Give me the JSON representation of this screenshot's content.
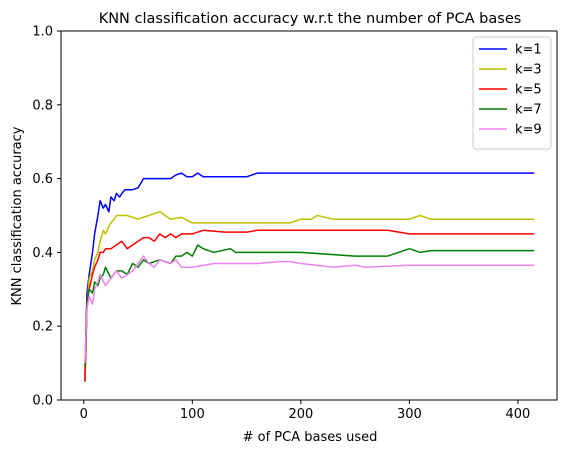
{
  "chart_data": {
    "type": "line",
    "title": "KNN classification accuracy w.r.t the number of PCA bases",
    "xlabel": "# of PCA bases used",
    "ylabel": "KNN classification accuracy",
    "xlim": [
      -21,
      436
    ],
    "ylim": [
      0.0,
      1.0
    ],
    "xticks": [
      0,
      100,
      200,
      300,
      400
    ],
    "yticks": [
      0.0,
      0.2,
      0.4,
      0.6,
      0.8,
      1.0
    ],
    "xtick_labels": [
      "0",
      "100",
      "200",
      "300",
      "400"
    ],
    "ytick_labels": [
      "0.0",
      "0.2",
      "0.4",
      "0.6",
      "0.8",
      "1.0"
    ],
    "grid": false,
    "legend_position": "top-right",
    "series": [
      {
        "name": "k=1",
        "color": "#0000ff",
        "x": [
          1,
          2,
          3,
          5,
          8,
          10,
          13,
          15,
          18,
          20,
          23,
          25,
          28,
          30,
          33,
          35,
          38,
          40,
          45,
          50,
          55,
          60,
          70,
          80,
          85,
          90,
          95,
          100,
          105,
          110,
          120,
          130,
          140,
          150,
          155,
          160,
          200,
          250,
          300,
          350,
          415
        ],
        "y": [
          0.05,
          0.2,
          0.29,
          0.34,
          0.4,
          0.45,
          0.5,
          0.54,
          0.52,
          0.53,
          0.51,
          0.55,
          0.54,
          0.56,
          0.55,
          0.56,
          0.57,
          0.57,
          0.57,
          0.575,
          0.6,
          0.6,
          0.6,
          0.6,
          0.61,
          0.615,
          0.605,
          0.605,
          0.615,
          0.605,
          0.605,
          0.605,
          0.605,
          0.605,
          0.61,
          0.615,
          0.615,
          0.615,
          0.615,
          0.615,
          0.615
        ]
      },
      {
        "name": "k=3",
        "color": "#bfbf00",
        "x": [
          1,
          2,
          3,
          5,
          8,
          10,
          13,
          15,
          18,
          20,
          23,
          25,
          28,
          30,
          35,
          40,
          50,
          60,
          70,
          75,
          80,
          90,
          100,
          105,
          120,
          150,
          170,
          190,
          200,
          210,
          215,
          230,
          250,
          300,
          310,
          320,
          415
        ],
        "y": [
          0.05,
          0.14,
          0.25,
          0.33,
          0.35,
          0.38,
          0.4,
          0.43,
          0.46,
          0.45,
          0.47,
          0.48,
          0.49,
          0.5,
          0.5,
          0.5,
          0.49,
          0.5,
          0.51,
          0.5,
          0.49,
          0.495,
          0.48,
          0.48,
          0.48,
          0.48,
          0.48,
          0.48,
          0.49,
          0.49,
          0.5,
          0.49,
          0.49,
          0.49,
          0.5,
          0.49,
          0.49
        ]
      },
      {
        "name": "k=5",
        "color": "#ff0000",
        "x": [
          1,
          2,
          3,
          5,
          8,
          10,
          13,
          15,
          18,
          20,
          25,
          30,
          35,
          40,
          45,
          50,
          55,
          60,
          65,
          70,
          75,
          80,
          85,
          90,
          100,
          110,
          130,
          150,
          160,
          180,
          200,
          250,
          280,
          300,
          415
        ],
        "y": [
          0.05,
          0.15,
          0.27,
          0.3,
          0.34,
          0.36,
          0.38,
          0.4,
          0.4,
          0.41,
          0.41,
          0.42,
          0.43,
          0.41,
          0.42,
          0.43,
          0.44,
          0.44,
          0.43,
          0.45,
          0.44,
          0.45,
          0.44,
          0.45,
          0.45,
          0.46,
          0.455,
          0.455,
          0.46,
          0.46,
          0.46,
          0.46,
          0.46,
          0.45,
          0.45
        ]
      },
      {
        "name": "k=7",
        "color": "#008000",
        "x": [
          1,
          2,
          3,
          5,
          8,
          10,
          13,
          15,
          18,
          20,
          25,
          30,
          35,
          40,
          45,
          50,
          55,
          60,
          70,
          80,
          85,
          90,
          95,
          100,
          105,
          110,
          120,
          135,
          140,
          150,
          200,
          250,
          280,
          290,
          300,
          310,
          320,
          415
        ],
        "y": [
          0.09,
          0.17,
          0.26,
          0.3,
          0.29,
          0.32,
          0.31,
          0.33,
          0.34,
          0.36,
          0.33,
          0.35,
          0.35,
          0.34,
          0.37,
          0.36,
          0.38,
          0.37,
          0.38,
          0.37,
          0.39,
          0.39,
          0.4,
          0.39,
          0.42,
          0.41,
          0.4,
          0.41,
          0.4,
          0.4,
          0.4,
          0.39,
          0.39,
          0.4,
          0.41,
          0.4,
          0.405,
          0.405
        ]
      },
      {
        "name": "k=9",
        "color": "#ee82ee",
        "x": [
          1,
          2,
          3,
          5,
          8,
          10,
          13,
          15,
          20,
          25,
          30,
          35,
          40,
          45,
          50,
          55,
          60,
          65,
          70,
          80,
          85,
          90,
          100,
          110,
          120,
          130,
          140,
          160,
          180,
          190,
          200,
          230,
          250,
          260,
          300,
          415
        ],
        "y": [
          0.1,
          0.18,
          0.25,
          0.28,
          0.26,
          0.3,
          0.32,
          0.34,
          0.31,
          0.33,
          0.35,
          0.33,
          0.34,
          0.35,
          0.37,
          0.39,
          0.37,
          0.36,
          0.38,
          0.37,
          0.38,
          0.36,
          0.36,
          0.365,
          0.37,
          0.37,
          0.37,
          0.37,
          0.375,
          0.375,
          0.37,
          0.36,
          0.365,
          0.36,
          0.365,
          0.365
        ]
      }
    ]
  }
}
